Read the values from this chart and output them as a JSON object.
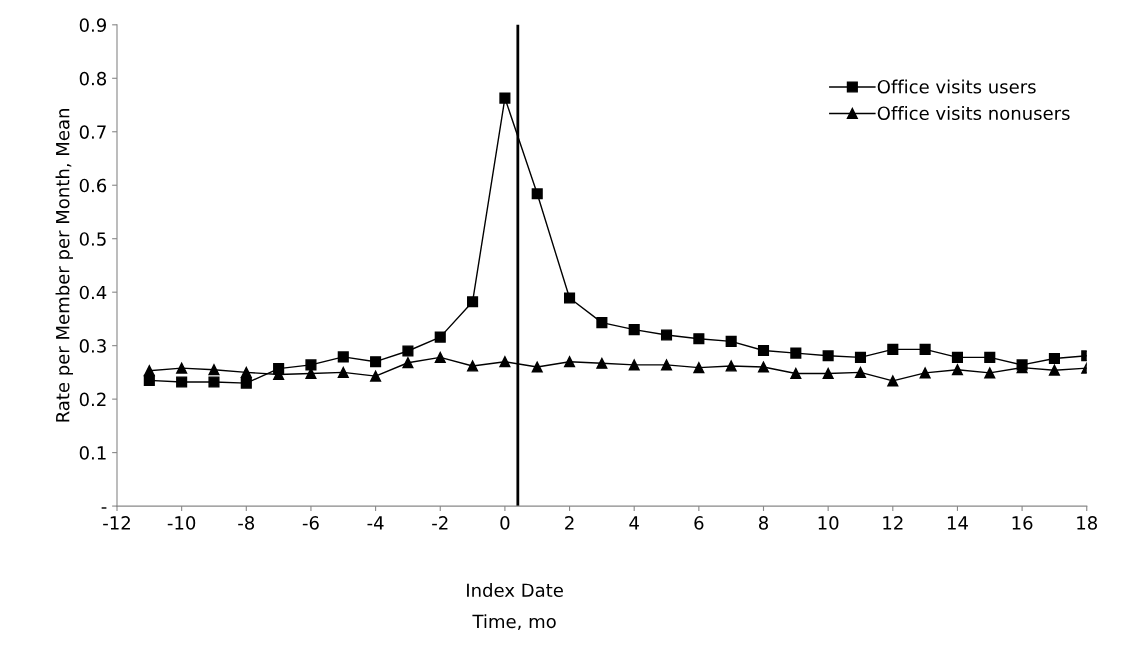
{
  "chart_data": {
    "type": "line",
    "xlabel": "Index Date\nTime, mo",
    "ylabel": "Rate per Member per Month, Mean",
    "x": [
      -11,
      -10,
      -9,
      -8,
      -7,
      -6,
      -5,
      -4,
      -3,
      -2,
      -1,
      0,
      1,
      2,
      3,
      4,
      5,
      6,
      7,
      8,
      9,
      10,
      11,
      12,
      13,
      14,
      15,
      16,
      17,
      18
    ],
    "series": [
      {
        "name": "Office visits users",
        "color": "#000000",
        "marker": "square",
        "values": [
          0.235,
          0.232,
          0.232,
          0.23,
          0.257,
          0.264,
          0.279,
          0.27,
          0.29,
          0.316,
          0.382,
          0.763,
          0.584,
          0.389,
          0.343,
          0.33,
          0.32,
          0.313,
          0.308,
          0.291,
          0.286,
          0.281,
          0.278,
          0.293,
          0.293,
          0.278,
          0.278,
          0.264,
          0.276,
          0.281
        ]
      },
      {
        "name": "Office visits nonusers",
        "color": "#000000",
        "marker": "triangle",
        "values": [
          0.253,
          0.258,
          0.255,
          0.25,
          0.246,
          0.248,
          0.25,
          0.243,
          0.268,
          0.278,
          0.262,
          0.27,
          0.26,
          0.27,
          0.267,
          0.264,
          0.264,
          0.259,
          0.262,
          0.26,
          0.248,
          0.248,
          0.25,
          0.234,
          0.249,
          0.255,
          0.249,
          0.259,
          0.254,
          0.258
        ]
      }
    ],
    "xlim": [
      -12,
      18
    ],
    "xticks": [
      -12,
      -10,
      -8,
      -6,
      -4,
      -2,
      0,
      2,
      4,
      6,
      8,
      10,
      12,
      14,
      16,
      18
    ],
    "ylim": [
      0,
      0.9
    ],
    "yticks": [
      {
        "value": 0,
        "label": "-"
      },
      0.1,
      0.2,
      0.3,
      0.4,
      0.5,
      0.6,
      0.7,
      0.8,
      0.9
    ],
    "ref_lines": [
      {
        "axis": "x",
        "value": 0.4,
        "color": "#000000"
      }
    ],
    "grid": false,
    "legend": "top right",
    "line_style": "solid"
  }
}
